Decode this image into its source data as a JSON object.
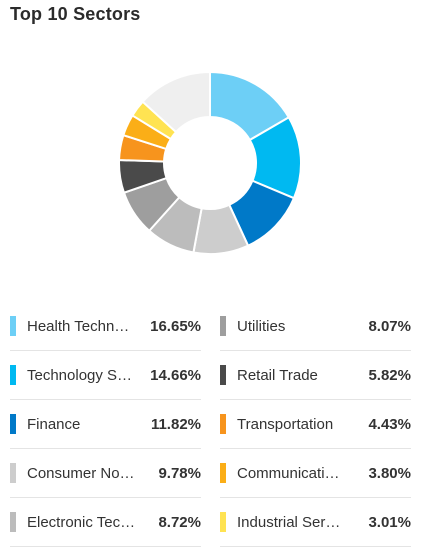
{
  "title": "Top 10 Sectors",
  "chart_data": {
    "type": "pie",
    "donut": true,
    "title": "Top 10 Sectors",
    "categories": [
      "Health Techn…",
      "Technology S…",
      "Finance",
      "Consumer No…",
      "Electronic Tec…",
      "Utilities",
      "Retail Trade",
      "Transportation",
      "Communicati…",
      "Industrial Ser…"
    ],
    "values": [
      16.65,
      14.66,
      11.82,
      9.78,
      8.72,
      8.07,
      5.82,
      4.43,
      3.8,
      3.01
    ],
    "remainder": {
      "value": 13.24,
      "color": "#efefef"
    },
    "legend_position": "bottom",
    "grid": false
  },
  "legend": [
    {
      "label": "Health Techn…",
      "value_text": "16.65%",
      "color": "#6dcff6"
    },
    {
      "label": "Technology S…",
      "value_text": "14.66%",
      "color": "#00b9f1"
    },
    {
      "label": "Finance",
      "value_text": "11.82%",
      "color": "#0079c8"
    },
    {
      "label": "Consumer No…",
      "value_text": "9.78%",
      "color": "#cdcdcd"
    },
    {
      "label": "Electronic Tec…",
      "value_text": "8.72%",
      "color": "#bcbcbc"
    },
    {
      "label": "Utilities",
      "value_text": "8.07%",
      "color": "#9e9e9e"
    },
    {
      "label": "Retail Trade",
      "value_text": "5.82%",
      "color": "#4a4a4a"
    },
    {
      "label": "Transportation",
      "value_text": "4.43%",
      "color": "#f7941d"
    },
    {
      "label": "Communicati…",
      "value_text": "3.80%",
      "color": "#fbae17"
    },
    {
      "label": "Industrial Ser…",
      "value_text": "3.01%",
      "color": "#ffe352"
    }
  ]
}
